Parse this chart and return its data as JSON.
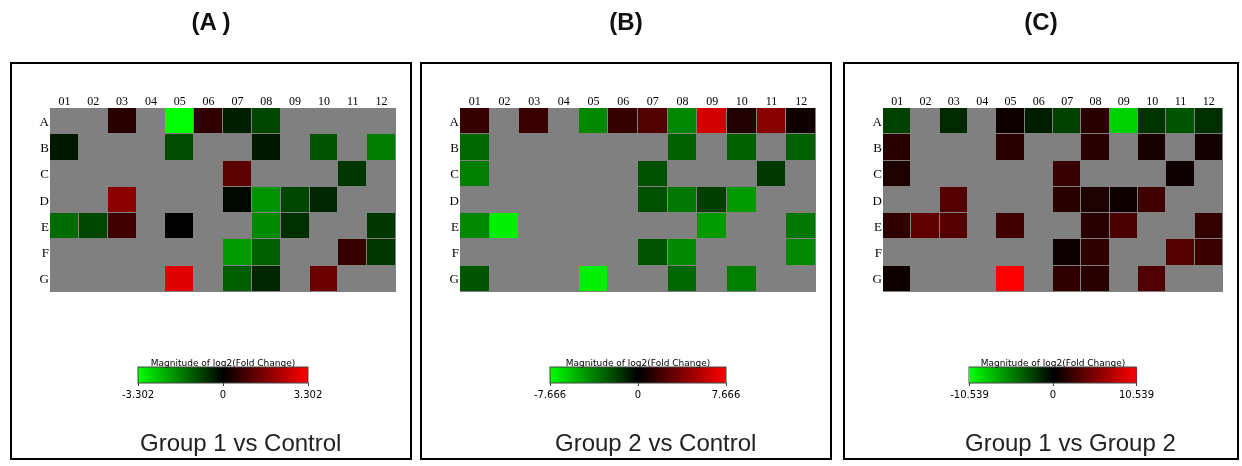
{
  "chart_data": [
    {
      "type": "heatmap",
      "title": "(A )",
      "clabel": "Magnitude of log2(Fold Change)",
      "categories": [
        "01",
        "02",
        "03",
        "04",
        "05",
        "06",
        "07",
        "08",
        "09",
        "10",
        "11",
        "12"
      ],
      "y_categories": [
        "A",
        "B",
        "C",
        "D",
        "E",
        "F",
        "G"
      ],
      "cells": [
        [
          null,
          null,
          0.5,
          null,
          -3.3,
          0.6,
          -0.4,
          -0.9,
          null,
          null,
          null,
          null
        ],
        [
          -0.3,
          null,
          null,
          null,
          -1.0,
          null,
          null,
          -0.3,
          null,
          -1.1,
          null,
          -1.6
        ],
        [
          null,
          null,
          null,
          null,
          null,
          null,
          1.2,
          null,
          null,
          null,
          -0.7,
          null
        ],
        [
          null,
          null,
          1.8,
          null,
          null,
          null,
          -0.1,
          -1.9,
          -0.9,
          -0.5,
          null,
          null
        ],
        [
          -1.4,
          -0.9,
          0.8,
          null,
          0.0,
          null,
          null,
          -1.8,
          -0.6,
          null,
          null,
          -0.7
        ],
        [
          null,
          null,
          null,
          null,
          null,
          null,
          -2.0,
          -1.2,
          null,
          null,
          0.7,
          -0.7
        ],
        [
          null,
          null,
          null,
          null,
          2.9,
          null,
          -1.2,
          -0.5,
          null,
          1.4,
          null,
          null
        ]
      ],
      "clim": [
        -3.302,
        3.302
      ],
      "cticks": [
        -3.302,
        0,
        3.302
      ],
      "annotations": [
        "Group 1 vs Control"
      ]
    },
    {
      "type": "heatmap",
      "title": "(B)",
      "clabel": "Magnitude of log2(Fold Change)",
      "categories": [
        "01",
        "02",
        "03",
        "04",
        "05",
        "06",
        "07",
        "08",
        "09",
        "10",
        "11",
        "12"
      ],
      "y_categories": [
        "A",
        "B",
        "C",
        "D",
        "E",
        "F",
        "G"
      ],
      "cells": [
        [
          1.6,
          null,
          1.7,
          null,
          -4.1,
          1.6,
          2.4,
          -4.1,
          6.3,
          0.9,
          4.1,
          0.5
        ],
        [
          -3.1,
          null,
          null,
          null,
          null,
          null,
          null,
          -2.9,
          null,
          -2.9,
          null,
          -2.9
        ],
        [
          -3.8,
          null,
          null,
          null,
          null,
          null,
          -2.4,
          null,
          null,
          null,
          -1.7,
          null
        ],
        [
          null,
          null,
          null,
          null,
          null,
          null,
          -2.4,
          -3.6,
          -1.9,
          -4.6,
          null,
          null
        ],
        [
          -4.1,
          -7.2,
          null,
          null,
          null,
          null,
          null,
          null,
          -4.6,
          null,
          null,
          -3.6
        ],
        [
          null,
          null,
          null,
          null,
          null,
          null,
          -2.6,
          -4.1,
          null,
          null,
          null,
          -4.1
        ],
        [
          -2.6,
          null,
          null,
          null,
          -7.2,
          null,
          null,
          -3.1,
          null,
          -3.8,
          null,
          null
        ]
      ],
      "clim": [
        -7.666,
        7.666
      ],
      "cticks": [
        -7.666,
        0,
        7.666
      ],
      "annotations": [
        "Group 2 vs Control"
      ]
    },
    {
      "type": "heatmap",
      "title": "(C)",
      "clabel": "Magnitude of log2(Fold Change)",
      "categories": [
        "01",
        "02",
        "03",
        "04",
        "05",
        "06",
        "07",
        "08",
        "09",
        "10",
        "11",
        "12"
      ],
      "y_categories": [
        "A",
        "B",
        "C",
        "D",
        "E",
        "F",
        "G"
      ],
      "cells": [
        [
          -2.7,
          null,
          -1.7,
          null,
          0.6,
          -1.2,
          -2.7,
          1.7,
          -8.6,
          -2.1,
          -3.5,
          -1.9
        ],
        [
          1.7,
          null,
          null,
          null,
          1.7,
          null,
          null,
          1.7,
          null,
          1.0,
          null,
          0.8
        ],
        [
          1.2,
          null,
          null,
          null,
          null,
          null,
          2.3,
          null,
          null,
          null,
          0.6,
          null
        ],
        [
          null,
          null,
          3.5,
          null,
          null,
          null,
          1.7,
          1.2,
          0.6,
          2.7,
          null,
          null
        ],
        [
          1.9,
          3.9,
          3.5,
          null,
          2.7,
          null,
          null,
          1.7,
          3.1,
          null,
          null,
          2.1
        ],
        [
          null,
          null,
          null,
          null,
          null,
          null,
          0.6,
          1.9,
          null,
          null,
          3.5,
          2.3
        ],
        [
          0.6,
          null,
          null,
          null,
          10.5,
          null,
          1.9,
          1.7,
          null,
          3.3,
          null,
          null
        ]
      ],
      "clim": [
        -10.539,
        10.539
      ],
      "cticks": [
        -10.539,
        0,
        10.539
      ],
      "annotations": [
        "Group 1 vs Group 2"
      ]
    }
  ]
}
